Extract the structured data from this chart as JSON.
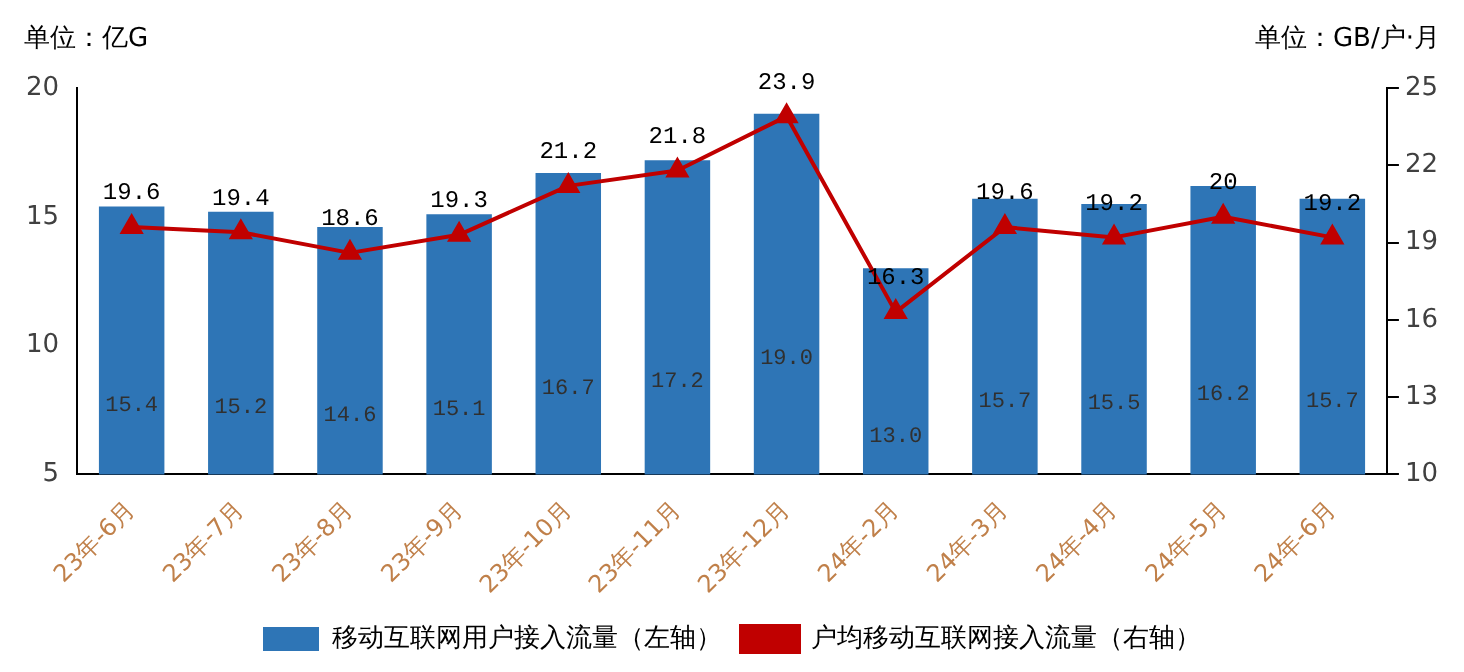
{
  "chart_data": {
    "type": "bar",
    "ylabel": "单位：亿G",
    "y2label": "单位：GB/户·月",
    "categories": [
      "23年-6月",
      "23年-7月",
      "23年-8月",
      "23年-9月",
      "23年-10月",
      "23年-11月",
      "23年-12月",
      "24年-2月",
      "24年-3月",
      "24年-4月",
      "24年-5月",
      "24年-6月"
    ],
    "series": [
      {
        "name": "移动互联网用户接入流量（左轴）",
        "color": "#2e75b6",
        "values": [
          15.4,
          15.2,
          14.6,
          15.1,
          16.7,
          17.2,
          19.0,
          13.0,
          15.7,
          15.5,
          16.2,
          15.7
        ],
        "value_labels": [
          "15.4",
          "15.2",
          "14.6",
          "15.1",
          "16.7",
          "17.2",
          "19.0",
          "13.0",
          "15.7",
          "15.5",
          "16.2",
          "15.7"
        ]
      },
      {
        "name": "户均移动互联网接入流量（右轴）",
        "type": "line",
        "axis": "y2",
        "color": "#c00000",
        "marker": "triangle",
        "values": [
          19.6,
          19.4,
          18.6,
          19.3,
          21.2,
          21.8,
          23.9,
          16.3,
          19.6,
          19.2,
          20,
          19.2
        ]
      }
    ],
    "ylim": [
      5,
      20
    ],
    "yticks": [
      5,
      10,
      15,
      20
    ],
    "y2lim": [
      10,
      25
    ],
    "y2ticks": [
      10,
      13,
      16,
      19,
      22,
      25
    ],
    "grid": false,
    "legend": "bottom",
    "data_labels": true
  }
}
